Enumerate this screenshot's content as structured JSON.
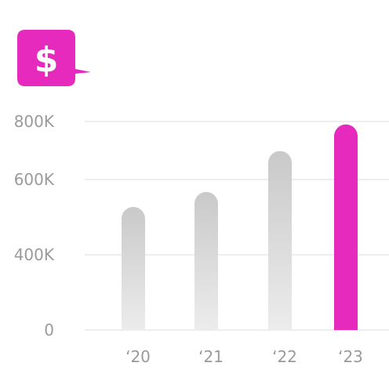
{
  "chart_data": {
    "type": "bar",
    "categories": [
      "‘20",
      "‘21",
      "‘22",
      "‘23"
    ],
    "values": [
      527000,
      567000,
      698000,
      790000
    ],
    "ytick_values": [
      0,
      400000,
      600000,
      800000
    ],
    "ytick_labels": [
      "0",
      "400K",
      "600K",
      "800K"
    ],
    "grid": true,
    "highlight_index": 3
  },
  "badge": {
    "icon": "dollar-speech-bubble-icon",
    "glyph": "$"
  },
  "colors": {
    "accent": "#e62abd",
    "bar_top": "#c9c9c9",
    "bar_bottom": "#ececec",
    "grid": "#e9e9e9",
    "tick_text": "#9a9a9a"
  }
}
